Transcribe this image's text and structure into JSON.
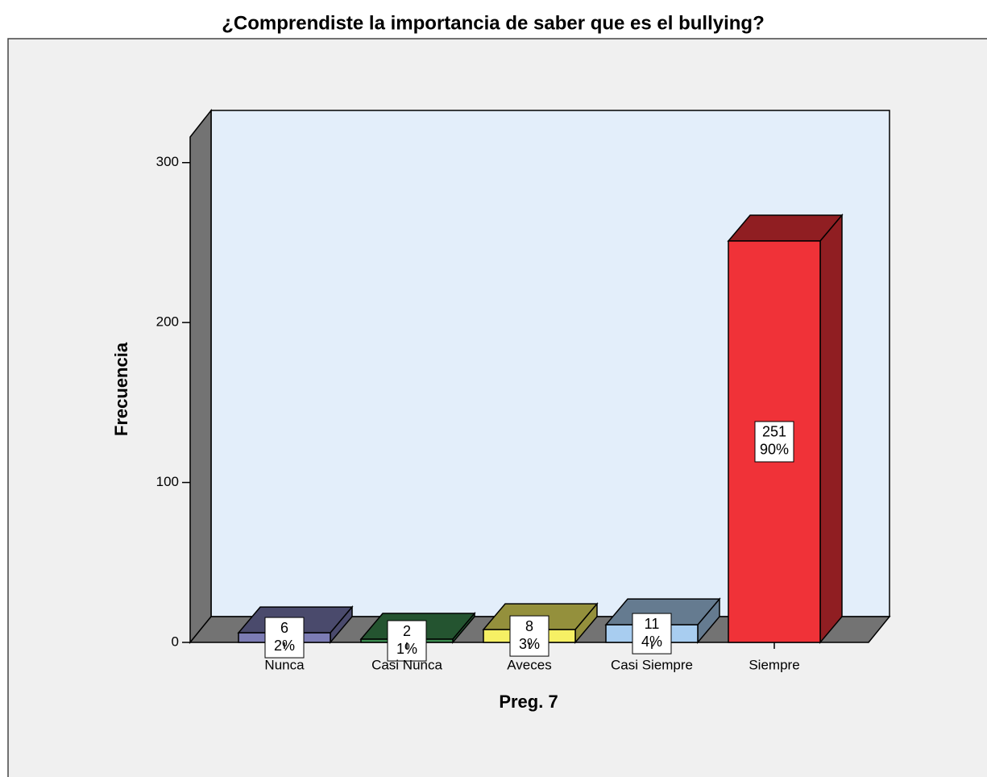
{
  "chart_data": {
    "type": "bar3d",
    "title": "¿Comprendiste la importancia de saber que es el bullying?",
    "x_label": "Preg. 7",
    "y_label": "Frecuencia",
    "categories": [
      "Nunca",
      "Casi Nunca",
      "Aveces",
      "Casi Siempre",
      "Siempre"
    ],
    "values": [
      6,
      2,
      8,
      11,
      251
    ],
    "percent_labels": [
      "2%",
      "1%",
      "3%",
      "4%",
      "90%"
    ],
    "colors": [
      "#7c7cb4",
      "#3c8c50",
      "#f6f064",
      "#a8cdf0",
      "#f03238"
    ],
    "ylim": [
      0,
      316
    ],
    "yticks": [
      0,
      100,
      200,
      300
    ]
  }
}
